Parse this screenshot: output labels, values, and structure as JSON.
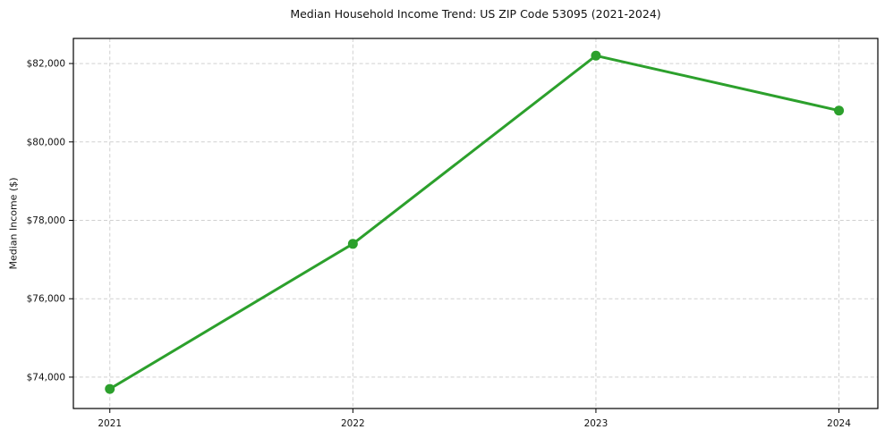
{
  "chart_data": {
    "type": "line",
    "title": "Median Household Income Trend: US ZIP Code 53095 (2021-2024)",
    "xlabel": "",
    "ylabel": "Median Income ($)",
    "x": [
      2021,
      2022,
      2023,
      2024
    ],
    "x_tick_labels": [
      "2021",
      "2022",
      "2023",
      "2024"
    ],
    "values": [
      73700,
      77400,
      82200,
      80800
    ],
    "yticks": [
      74000,
      76000,
      78000,
      80000,
      82000
    ],
    "y_tick_labels": [
      "$74,000",
      "$76,000",
      "$78,000",
      "$80,000",
      "$82,000"
    ],
    "xlim": [
      2020.85,
      2024.16
    ],
    "ylim": [
      73200,
      82640
    ],
    "line_color": "#2ca02c",
    "marker": "circle",
    "grid": "dashed",
    "grid_color": "#d0d0d0",
    "spine_color": "#000000",
    "background": "#ffffff",
    "legend": "none"
  }
}
